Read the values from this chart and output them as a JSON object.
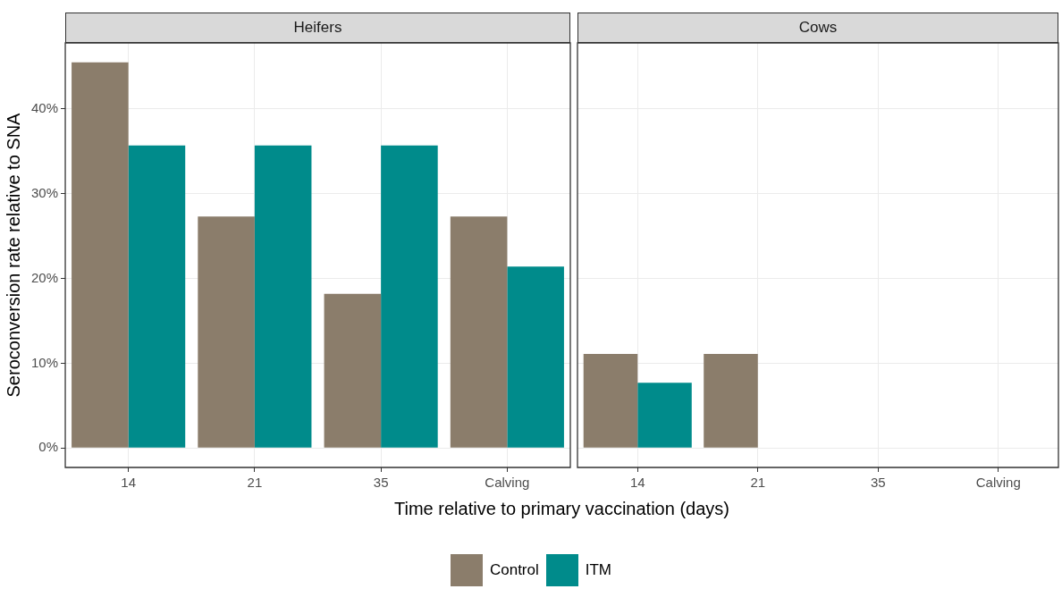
{
  "chart_data": [
    {
      "type": "bar",
      "title": "Heifers",
      "xlabel": "Time relative to primary vaccination (days)",
      "ylabel": "Seroconversion rate relative to SNA",
      "categories": [
        "14",
        "21",
        "35",
        "Calving"
      ],
      "series": [
        {
          "name": "Control",
          "color": "#8b7d6b",
          "values": [
            45.5,
            27.3,
            18.2,
            27.3
          ]
        },
        {
          "name": "ITM",
          "color": "#008b8b",
          "values": [
            35.7,
            35.7,
            35.7,
            21.4
          ]
        }
      ],
      "ylim": [
        -2.3,
        47.8
      ],
      "yticks": [
        {
          "value": 0,
          "label": "0%"
        },
        {
          "value": 10,
          "label": "10%"
        },
        {
          "value": 20,
          "label": "20%"
        },
        {
          "value": 30,
          "label": "30%"
        },
        {
          "value": 40,
          "label": "40%"
        }
      ],
      "grid": true,
      "legend": "bottom"
    },
    {
      "type": "bar",
      "title": "Cows",
      "categories": [
        "14",
        "21",
        "35",
        "Calving"
      ],
      "series": [
        {
          "color": "#8b7d6b",
          "values": [
            11.1,
            11.1,
            0,
            0
          ]
        },
        {
          "color": "#008b8b",
          "values": [
            7.7,
            0,
            0,
            0
          ]
        }
      ],
      "ylim": [
        -2.3,
        47.8
      ],
      "yticks": [
        0,
        10,
        20,
        30,
        40
      ],
      "grid": true,
      "tick_labels": "x"
    }
  ]
}
